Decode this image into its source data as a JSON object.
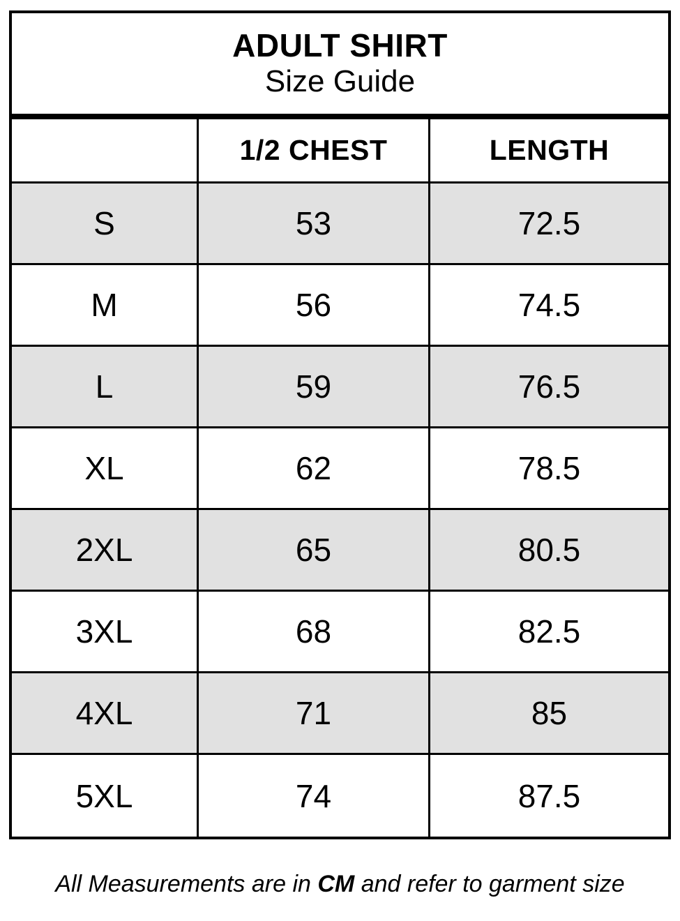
{
  "title": {
    "line1": "ADULT SHIRT",
    "line2": "Size Guide"
  },
  "chart_data": {
    "type": "table",
    "title": "ADULT SHIRT Size Guide",
    "columns": [
      "",
      "1/2 CHEST",
      "LENGTH"
    ],
    "rows": [
      [
        "S",
        "53",
        "72.5"
      ],
      [
        "M",
        "56",
        "74.5"
      ],
      [
        "L",
        "59",
        "76.5"
      ],
      [
        "XL",
        "62",
        "78.5"
      ],
      [
        "2XL",
        "65",
        "80.5"
      ],
      [
        "3XL",
        "68",
        "82.5"
      ],
      [
        "4XL",
        "71",
        "85"
      ],
      [
        "5XL",
        "74",
        "87.5"
      ]
    ],
    "units": "CM",
    "footnote": "All Measurements are in CM and refer to garment size",
    "layout": {
      "shaded_row_indices": [
        0,
        2,
        4,
        6
      ],
      "shade_color": "#e1e1e1",
      "border_color": "#000000"
    }
  },
  "footer": {
    "prefix": "All Measurements are in ",
    "unit": "CM",
    "suffix": " and refer to garment size"
  },
  "colors": {
    "background": "#ffffff",
    "border": "#000000",
    "row_shade": "#e1e1e1",
    "text": "#000000"
  }
}
